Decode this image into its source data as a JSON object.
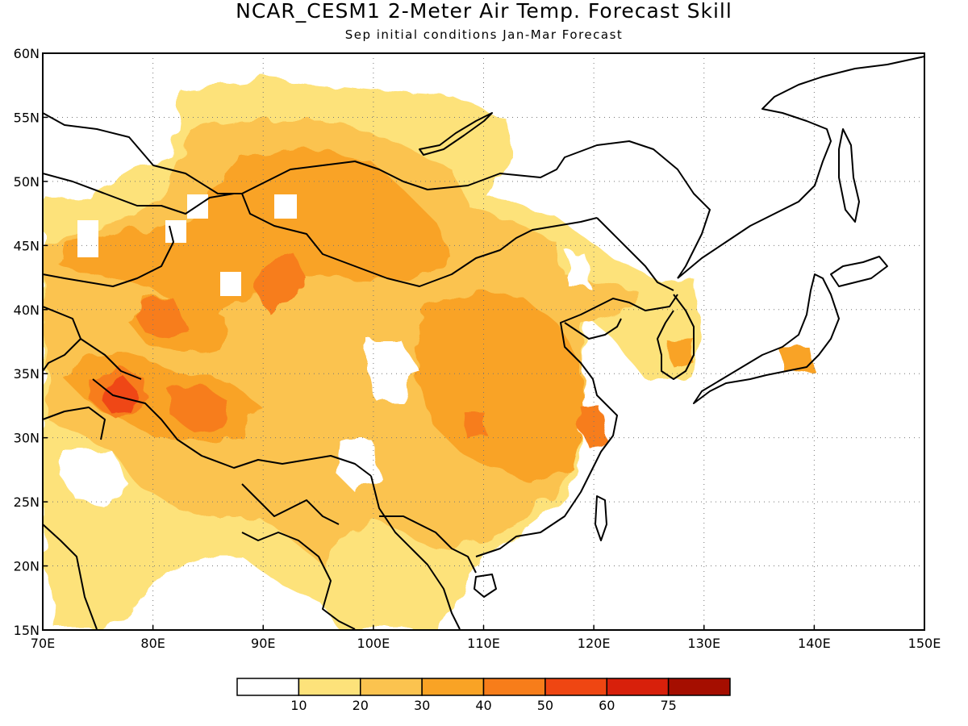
{
  "title": "NCAR_CESM1 2-Meter Air Temp. Forecast Skill",
  "subtitle": "Sep initial conditions  Jan-Mar Forecast",
  "map": {
    "lon_range": [
      70,
      150
    ],
    "lat_range": [
      15,
      60
    ],
    "lon_ticks": [
      {
        "value": 70,
        "label": "70E"
      },
      {
        "value": 80,
        "label": "80E"
      },
      {
        "value": 90,
        "label": "90E"
      },
      {
        "value": 100,
        "label": "100E"
      },
      {
        "value": 110,
        "label": "110E"
      },
      {
        "value": 120,
        "label": "120E"
      },
      {
        "value": 130,
        "label": "130E"
      },
      {
        "value": 140,
        "label": "140E"
      },
      {
        "value": 150,
        "label": "150E"
      }
    ],
    "lat_ticks": [
      {
        "value": 15,
        "label": "15N"
      },
      {
        "value": 20,
        "label": "20N"
      },
      {
        "value": 25,
        "label": "25N"
      },
      {
        "value": 30,
        "label": "30N"
      },
      {
        "value": 35,
        "label": "35N"
      },
      {
        "value": 40,
        "label": "40N"
      },
      {
        "value": 45,
        "label": "45N"
      },
      {
        "value": 50,
        "label": "50N"
      },
      {
        "value": 55,
        "label": "55N"
      },
      {
        "value": 60,
        "label": "60N"
      }
    ],
    "gridlines": "dotted"
  },
  "colorbar": {
    "colors": [
      "#ffffff",
      "#fde27a",
      "#fbc34f",
      "#f9a325",
      "#f77d1a",
      "#ef4612",
      "#d8200b",
      "#a50e00"
    ],
    "labels": [
      "10",
      "20",
      "30",
      "40",
      "50",
      "60",
      "75"
    ]
  }
}
